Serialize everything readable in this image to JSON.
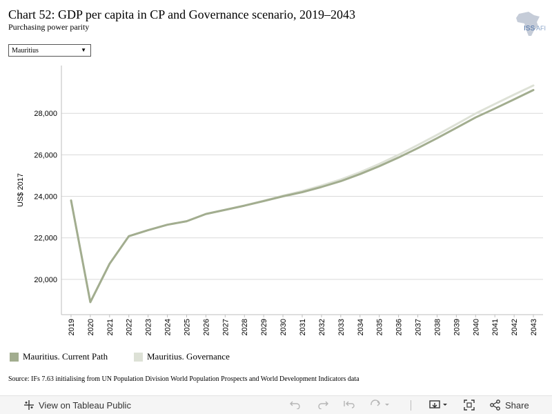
{
  "header": {
    "title": "Chart 52: GDP per capita in CP and Governance scenario, 2019–2043",
    "subtitle": "Purchasing power parity"
  },
  "logo": {
    "text": "ISS AFRICA",
    "icon": "africa-map-icon"
  },
  "filter": {
    "selected": "Mauritius",
    "icon": "chevron-down-icon"
  },
  "chart_data": {
    "type": "line",
    "ylabel": "US$ 2017",
    "ylim": [
      18300,
      30300
    ],
    "yticks": [
      20000,
      22000,
      24000,
      26000,
      28000
    ],
    "ytick_labels": [
      "20,000",
      "22,000",
      "24,000",
      "26,000",
      "28,000"
    ],
    "x": [
      "2019",
      "2020",
      "2021",
      "2022",
      "2023",
      "2024",
      "2025",
      "2026",
      "2027",
      "2028",
      "2029",
      "2030",
      "2031",
      "2032",
      "2033",
      "2034",
      "2035",
      "2036",
      "2037",
      "2038",
      "2039",
      "2040",
      "2041",
      "2042",
      "2043"
    ],
    "series": [
      {
        "name": "Mauritius. Current Path",
        "color": "#a2ad8f",
        "values": [
          23800,
          18900,
          20750,
          22080,
          22370,
          22630,
          22800,
          23150,
          23350,
          23550,
          23770,
          24000,
          24200,
          24450,
          24730,
          25070,
          25450,
          25870,
          26320,
          26800,
          27300,
          27800,
          28230,
          28670,
          29120
        ]
      },
      {
        "name": "Mauritius. Governance",
        "color": "#dde1d6",
        "values": [
          23800,
          18900,
          20750,
          22080,
          22370,
          22630,
          22800,
          23150,
          23350,
          23560,
          23790,
          24030,
          24250,
          24520,
          24810,
          25160,
          25560,
          26000,
          26470,
          26960,
          27470,
          27990,
          28450,
          28900,
          29340
        ]
      }
    ],
    "grid": true,
    "legend": "bottom-left"
  },
  "legend": {
    "items": [
      {
        "label": "Mauritius. Current Path",
        "color": "#a2ad8f"
      },
      {
        "label": "Mauritius. Governance",
        "color": "#dde1d6"
      }
    ]
  },
  "source": "Source: IFs 7.63 initialising from UN Population Division World Population Prospects and World Development Indicators data",
  "toolbar": {
    "view_label": "View on Tableau Public",
    "share_label": "Share"
  }
}
